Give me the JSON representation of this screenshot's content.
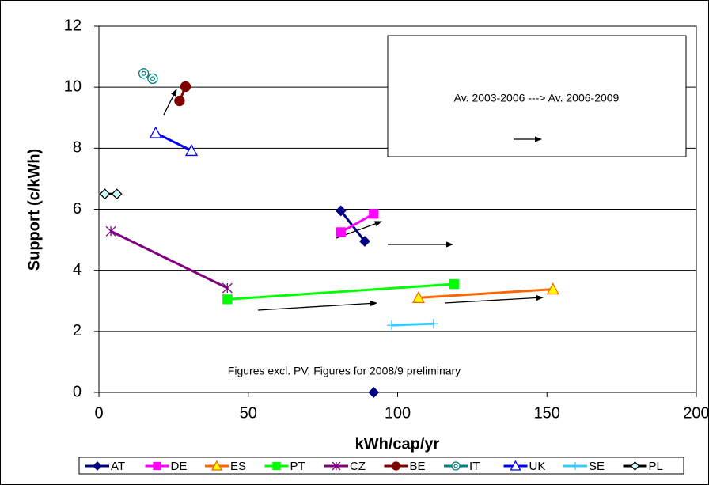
{
  "chart_data": {
    "type": "line",
    "xlabel": "kWh/cap/yr",
    "ylabel": "Support (c/kWh)",
    "annotations": [
      "Av. 2003-2006 ---> Av. 2006-2009",
      "Figures excl. PV, Figures for 2008/9  preliminary"
    ],
    "xlim": [
      0,
      200
    ],
    "xticks": [
      0,
      50,
      100,
      150,
      200
    ],
    "ylim": [
      0,
      12
    ],
    "yticks": [
      0,
      2,
      4,
      6,
      8,
      10,
      12
    ],
    "grid": true,
    "legend": "bottom",
    "series": [
      {
        "name": "AT",
        "color": "#000080",
        "marker": "diamond",
        "marker_fill": "#000080",
        "x": [
          81,
          89,
          null,
          92
        ],
        "values": [
          5.95,
          4.95,
          null,
          0
        ]
      },
      {
        "name": "DE",
        "color": "#ff00ff",
        "marker": "square",
        "marker_fill": "#ff00ff",
        "x": [
          81,
          92
        ],
        "values": [
          5.25,
          5.85
        ]
      },
      {
        "name": "ES",
        "color": "#ff6600",
        "marker": "triangle",
        "marker_fill": "#ffff00",
        "x": [
          107,
          152
        ],
        "values": [
          3.1,
          3.38
        ]
      },
      {
        "name": "PT",
        "color": "#00ff00",
        "marker": "square",
        "marker_fill": "#00ff00",
        "x": [
          43,
          119
        ],
        "values": [
          3.05,
          3.55
        ]
      },
      {
        "name": "CZ",
        "color": "#800080",
        "marker": "star",
        "marker_fill": "none",
        "x": [
          4,
          43
        ],
        "values": [
          5.28,
          3.42
        ]
      },
      {
        "name": "BE",
        "color": "#800000",
        "marker": "circle",
        "marker_fill": "#800000",
        "x": [
          27,
          29
        ],
        "values": [
          9.55,
          10.02
        ]
      },
      {
        "name": "IT",
        "color": "#008080",
        "marker": "ringcircle",
        "marker_fill": "#ffffff",
        "x": [
          15,
          18
        ],
        "values": [
          10.45,
          10.28
        ]
      },
      {
        "name": "UK",
        "color": "#0000ff",
        "marker": "triangle",
        "marker_fill": "#ffffff",
        "x": [
          19,
          31
        ],
        "values": [
          8.5,
          7.92
        ]
      },
      {
        "name": "SE",
        "color": "#33ccff",
        "marker": "plus",
        "marker_fill": "none",
        "x": [
          98,
          112
        ],
        "values": [
          2.2,
          2.25
        ]
      },
      {
        "name": "PL",
        "color": "#000000",
        "marker": "diamond",
        "marker_fill": "#ccffff",
        "x": [
          2,
          6
        ],
        "values": [
          6.5,
          6.5
        ]
      }
    ]
  }
}
